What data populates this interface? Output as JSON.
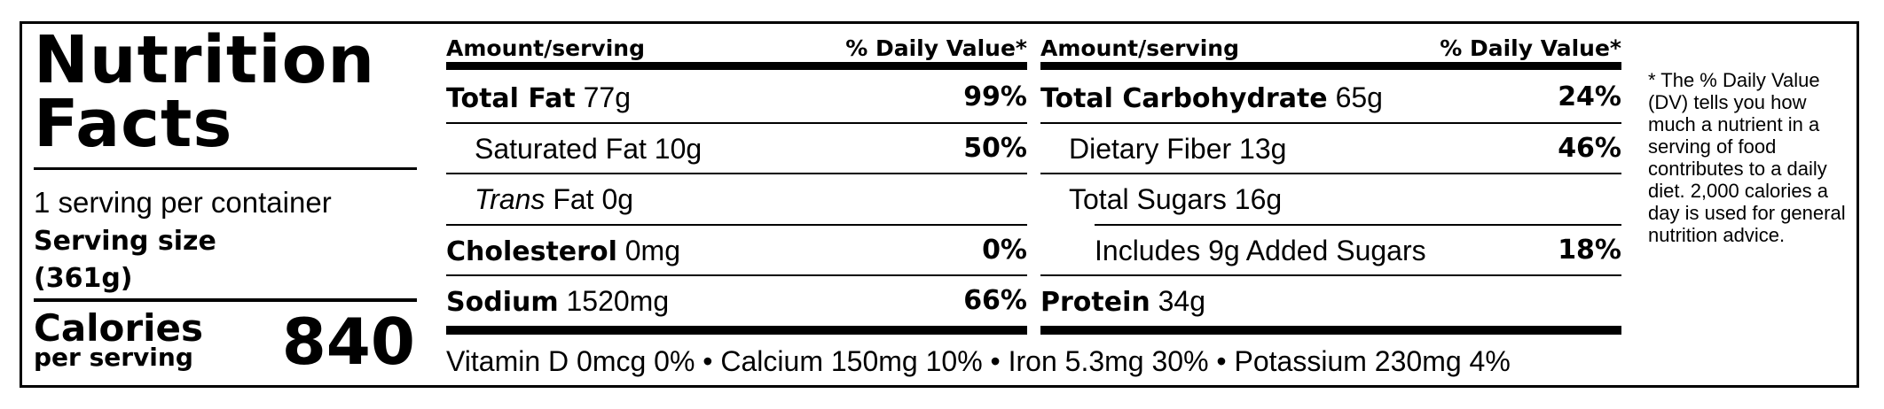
{
  "header": {
    "title": "Nutrition Facts"
  },
  "serving": {
    "per_container": "1 serving per container",
    "size": "Serving size (361g)"
  },
  "calories": {
    "label": "Calories",
    "sublabel": "per serving",
    "value": "840"
  },
  "tables": [
    {
      "header": {
        "amount": "Amount/serving",
        "dv": "% Daily Value*"
      },
      "rows": [
        {
          "name": "Total Fat",
          "amount": "77g",
          "dv": "99%",
          "bold": true,
          "indent": 0
        },
        {
          "name": "Saturated Fat",
          "amount": "10g",
          "dv": "50%",
          "bold": false,
          "indent": 1
        },
        {
          "prefix": "Trans",
          "name": "Fat",
          "amount": "0g",
          "bold": false,
          "indent": 1
        },
        {
          "name": "Cholesterol",
          "amount": "0mg",
          "dv": "0%",
          "bold": true,
          "indent": 0
        },
        {
          "name": "Sodium",
          "amount": "1520mg",
          "dv": "66%",
          "bold": true,
          "indent": 0
        }
      ]
    },
    {
      "header": {
        "amount": "Amount/serving",
        "dv": "% Daily Value*"
      },
      "rows": [
        {
          "name": "Total Carbohydrate",
          "amount": "65g",
          "dv": "24%",
          "bold": true,
          "indent": 0
        },
        {
          "name": "Dietary Fiber",
          "amount": "13g",
          "dv": "46%",
          "bold": false,
          "indent": 1
        },
        {
          "name": "Total Sugars",
          "amount": "16g",
          "bold": false,
          "indent": 1
        },
        {
          "name": "Includes 9g Added Sugars",
          "dv": "18%",
          "bold": false,
          "indent": 2
        },
        {
          "name": "Protein",
          "amount": "34g",
          "bold": true,
          "indent": 0
        }
      ]
    }
  ],
  "vitamins": {
    "items": [
      "Vitamin D 0mcg 0%",
      "Calcium 150mg 10%",
      "Iron 5.3mg 30%",
      "Potassium 230mg 4%"
    ],
    "separator": "•"
  },
  "footnote": "* The % Daily Value (DV) tells you how much a nutrient in a serving of food contributes to a daily diet. 2,000 calories a day is used for general nutrition advice."
}
